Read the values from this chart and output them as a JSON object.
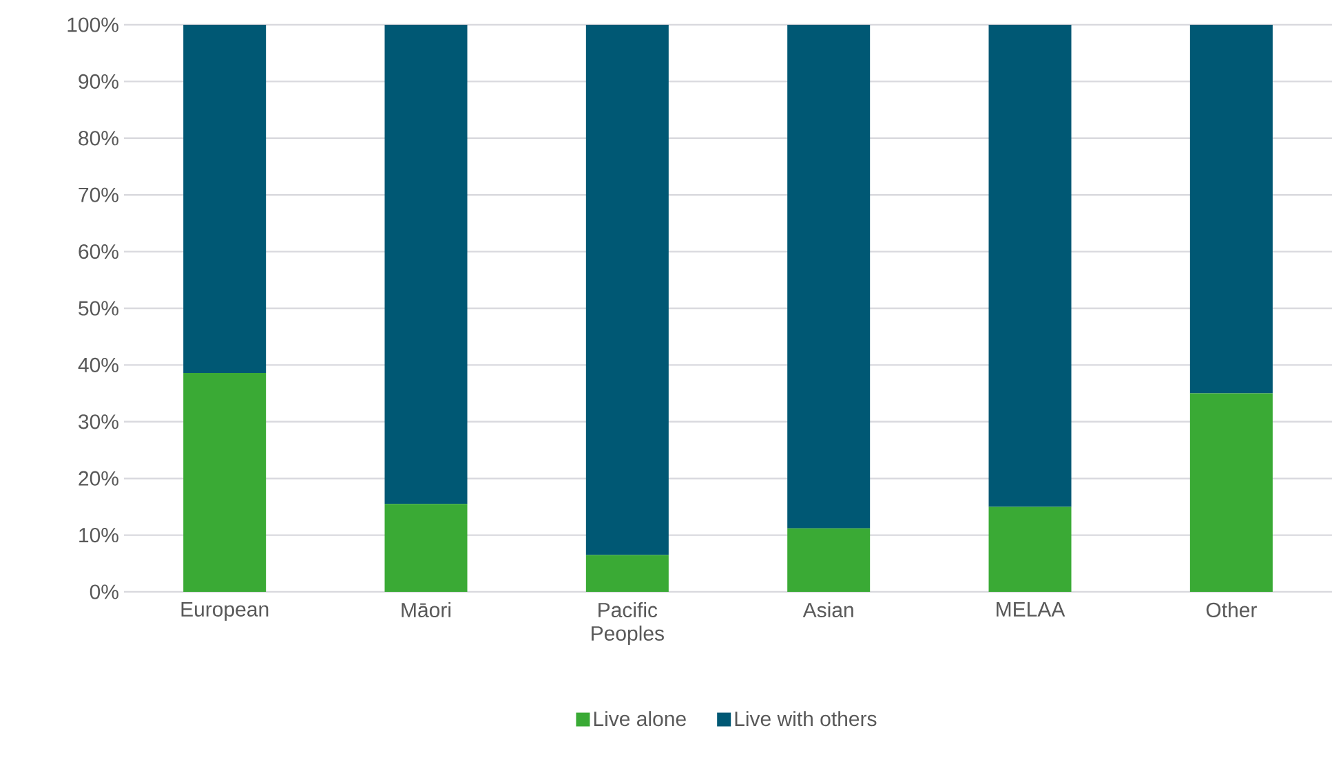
{
  "chart_data": {
    "type": "bar",
    "stacked": true,
    "categories": [
      "European",
      "Māori",
      "Pacific Peoples",
      "Asian",
      "MELAA",
      "Other"
    ],
    "series": [
      {
        "name": "Live alone",
        "color": "#3aaa35",
        "values": [
          38.6,
          15.5,
          6.5,
          11.2,
          15.0,
          35.0
        ]
      },
      {
        "name": "Live with others",
        "color": "#005874",
        "values": [
          61.4,
          84.5,
          93.5,
          88.8,
          85.0,
          65.0
        ]
      }
    ],
    "ylim": [
      0,
      100
    ],
    "yticks": [
      {
        "value": 0,
        "label": "0%"
      },
      {
        "value": 10,
        "label": "10%"
      },
      {
        "value": 20,
        "label": "20%"
      },
      {
        "value": 30,
        "label": "30%"
      },
      {
        "value": 40,
        "label": "40%"
      },
      {
        "value": 50,
        "label": "50%"
      },
      {
        "value": 60,
        "label": "60%"
      },
      {
        "value": 70,
        "label": "70%"
      },
      {
        "value": 80,
        "label": "80%"
      },
      {
        "value": 90,
        "label": "90%"
      },
      {
        "value": 100,
        "label": "100%"
      }
    ],
    "grid": "y",
    "legend": "bottom"
  }
}
